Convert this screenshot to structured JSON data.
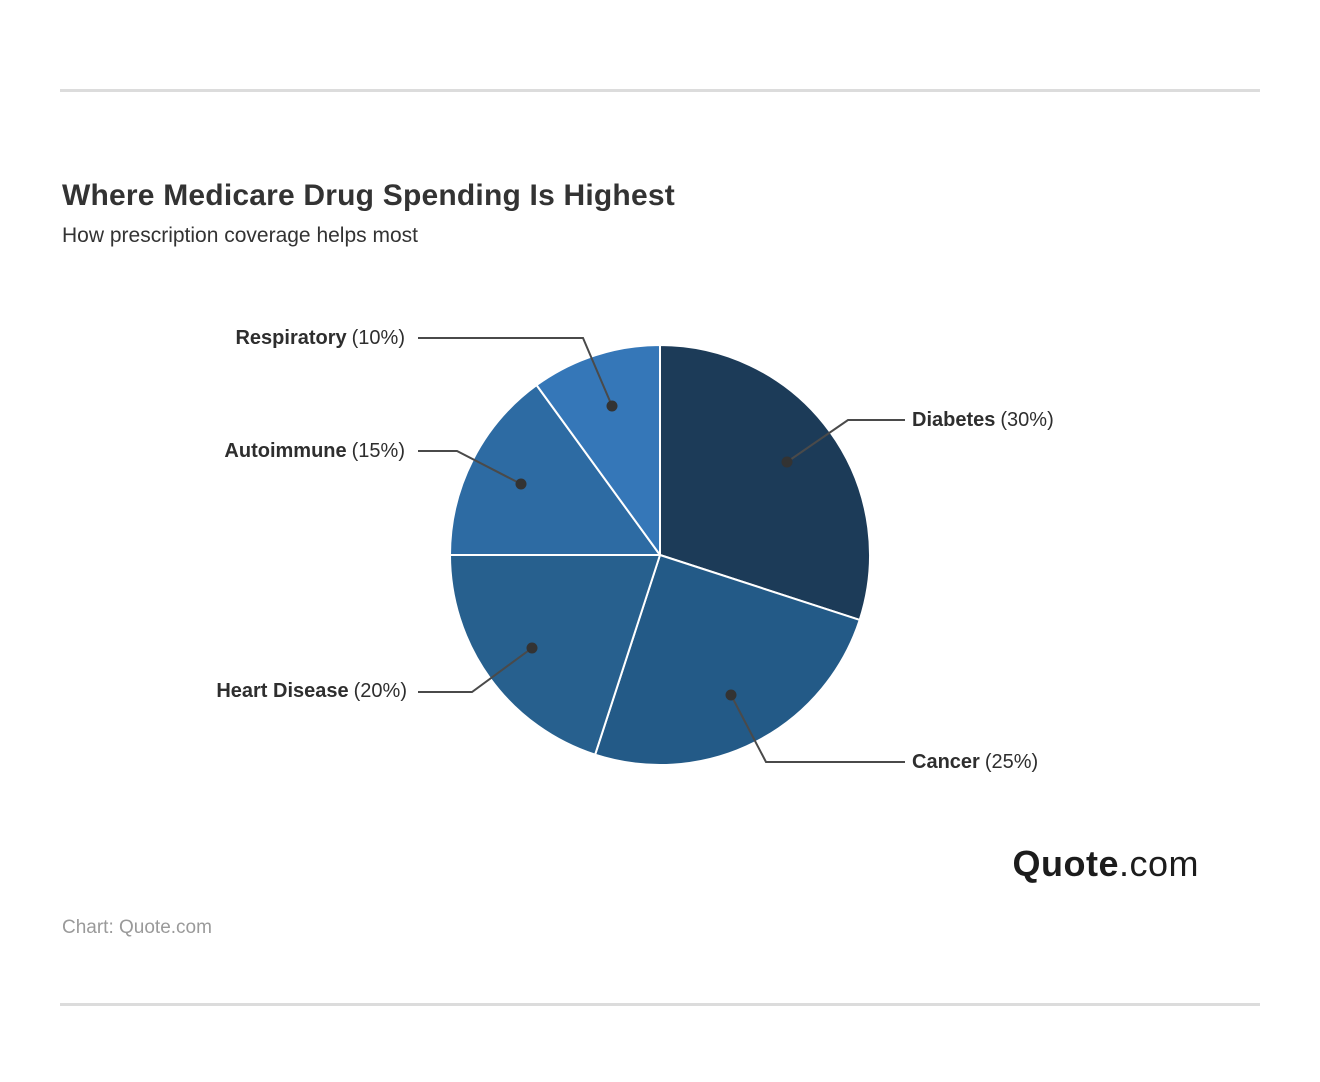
{
  "chart_data": {
    "type": "pie",
    "title": "Where Medicare Drug Spending Is Highest",
    "subtitle": "How prescription coverage helps most",
    "slices": [
      {
        "label": "Diabetes",
        "value": 30,
        "pct_text": "(30%)",
        "color": "#1c3b58"
      },
      {
        "label": "Cancer",
        "value": 25,
        "pct_text": "(25%)",
        "color": "#235a87"
      },
      {
        "label": "Heart Disease",
        "value": 20,
        "pct_text": "(20%)",
        "color": "#27608e"
      },
      {
        "label": "Autoimmune",
        "value": 15,
        "pct_text": "(15%)",
        "color": "#2d6ba3"
      },
      {
        "label": "Respiratory",
        "value": 10,
        "pct_text": "(10%)",
        "color": "#3577b8"
      }
    ],
    "start_angle_deg": -90,
    "direction": "clockwise",
    "slice_border_color": "#ffffff",
    "leader_line_color": "#4a4a4a",
    "leader_dot_color": "#333333",
    "legend_position": "callout-labels"
  },
  "footer": {
    "credit": "Chart: Quote.com",
    "logo_bold": "Quote",
    "logo_light": ".com"
  }
}
